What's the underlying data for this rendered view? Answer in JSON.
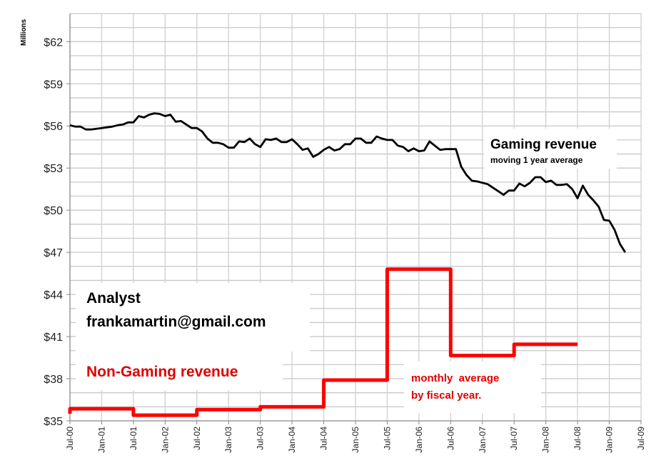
{
  "chart_data": {
    "type": "line",
    "ylabel": "Millions",
    "ylim": [
      35,
      64
    ],
    "y_ticks": [
      "$35",
      "$38",
      "$41",
      "$44",
      "$47",
      "$50",
      "$53",
      "$56",
      "$59",
      "$62"
    ],
    "y_tick_values": [
      35,
      38,
      41,
      44,
      47,
      50,
      53,
      56,
      59,
      62
    ],
    "x_ticks": [
      "Jul-00",
      "Jan-01",
      "Jul-01",
      "Jan-02",
      "Jul-02",
      "Jan-03",
      "Jul-03",
      "Jan-04",
      "Jul-04",
      "Jan-05",
      "Jul-05",
      "Jan-06",
      "Jul-06",
      "Jan-07",
      "Jul-07",
      "Jan-08",
      "Jul-08",
      "Jan-09",
      "Jul-09"
    ],
    "xlim": [
      "2000-07",
      "2009-07"
    ],
    "grid": true,
    "series": [
      {
        "name": "Gaming revenue",
        "subtitle": "moving 1 year average",
        "color": "#000000",
        "start": "2000-07",
        "frequency": "monthly",
        "values": [
          56.05,
          55.95,
          55.95,
          55.75,
          55.75,
          55.8,
          55.85,
          55.9,
          55.95,
          56.05,
          56.1,
          56.25,
          56.25,
          56.7,
          56.6,
          56.8,
          56.9,
          56.85,
          56.7,
          56.8,
          56.3,
          56.35,
          56.1,
          55.85,
          55.85,
          55.6,
          55.1,
          54.8,
          54.8,
          54.7,
          54.45,
          54.45,
          54.9,
          54.85,
          55.1,
          54.7,
          54.5,
          55.05,
          55.0,
          55.1,
          54.85,
          54.85,
          55.05,
          54.7,
          54.3,
          54.4,
          53.8,
          54.0,
          54.3,
          54.5,
          54.25,
          54.35,
          54.7,
          54.7,
          55.1,
          55.1,
          54.8,
          54.8,
          55.25,
          55.1,
          55.0,
          55.0,
          54.6,
          54.5,
          54.2,
          54.4,
          54.2,
          54.25,
          54.9,
          54.6,
          54.3,
          54.35,
          54.35,
          54.35,
          53.1,
          52.5,
          52.1,
          52.05,
          51.95,
          51.85,
          51.6,
          51.35,
          51.1,
          51.4,
          51.4,
          51.9,
          51.7,
          51.95,
          52.35,
          52.35,
          52.0,
          52.1,
          51.8,
          51.8,
          51.85,
          51.5,
          50.85,
          51.75,
          51.1,
          50.7,
          50.25,
          49.3,
          49.25,
          48.6,
          47.6,
          47.0
        ]
      },
      {
        "name": "Non-Gaming revenue",
        "subtitle": "monthly  average by fiscal year.",
        "color": "#ff0000",
        "type": "step",
        "periods": [
          {
            "from": "2000-07",
            "to": "2001-07",
            "value": 35.86
          },
          {
            "from": "2001-07",
            "to": "2002-07",
            "value": 35.4
          },
          {
            "from": "2002-07",
            "to": "2003-07",
            "value": 35.8
          },
          {
            "from": "2003-07",
            "to": "2004-07",
            "value": 36.0
          },
          {
            "from": "2004-07",
            "to": "2005-07",
            "value": 37.9
          },
          {
            "from": "2005-07",
            "to": "2006-07",
            "value": 45.8
          },
          {
            "from": "2006-07",
            "to": "2007-07",
            "value": 39.65
          },
          {
            "from": "2007-07",
            "to": "2008-07",
            "value": 40.45
          }
        ]
      }
    ],
    "annotations": {
      "gaming_title": "Gaming revenue",
      "gaming_sub": "moving 1 year average",
      "analyst": "Analyst",
      "email": "frankamartin@gmail.com",
      "nongaming_title": "Non-Gaming revenue",
      "nongaming_sub1": "monthly  average",
      "nongaming_sub2": "by fiscal year."
    }
  }
}
